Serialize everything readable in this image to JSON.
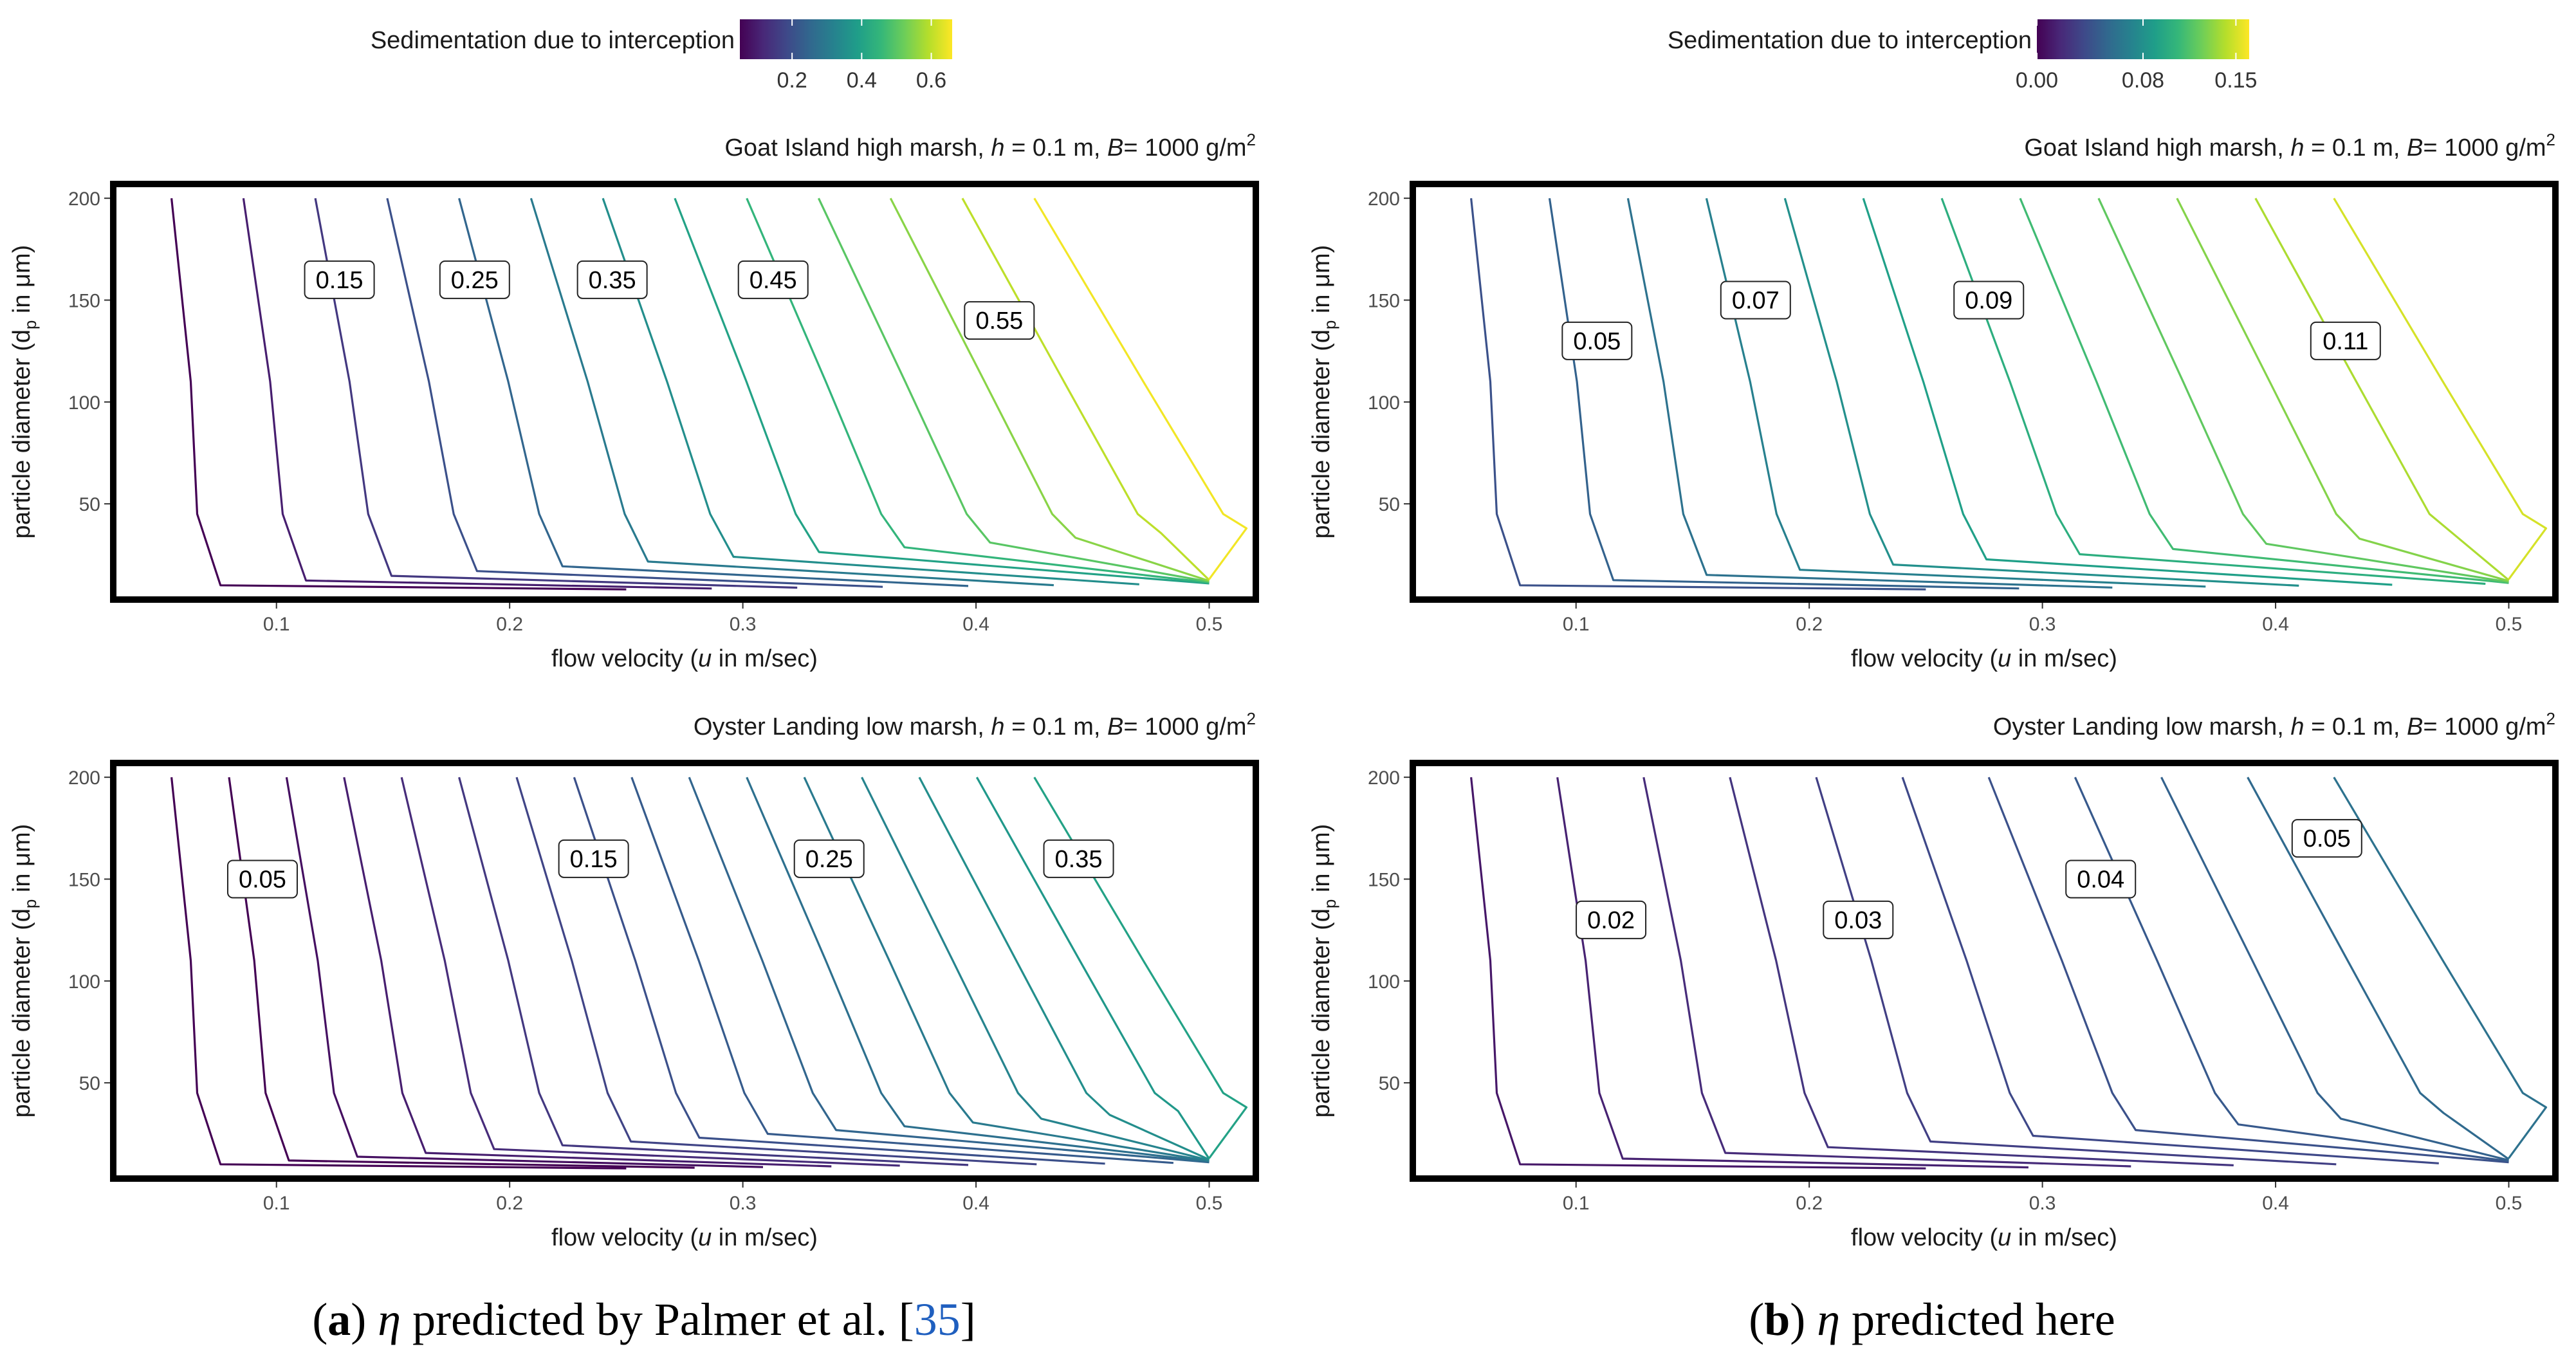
{
  "colorbar_title": "Sedimentation due to interception",
  "colors": {
    "viridis": [
      "#440154",
      "#482878",
      "#3e4989",
      "#31688e",
      "#26828e",
      "#1f9e89",
      "#35b779",
      "#6ece58",
      "#b5de2b",
      "#fde725"
    ],
    "frame": "#000000",
    "text": "#1a1a1a",
    "caption_ref": "#1f5fbf"
  },
  "captions": {
    "a": {
      "letter": "a",
      "text_mid": " predicted by Palmer et al. [",
      "ref": "35",
      "text_end": "]"
    },
    "b": {
      "letter": "b",
      "text_mid": " predicted here",
      "ref": "",
      "text_end": ""
    },
    "eta": "η"
  },
  "chart_data": [
    {
      "id": "a-top",
      "type": "contour",
      "subtitle_parts": {
        "site": "Goat Island high marsh, ",
        "h": "h",
        "h_val": " = 0.1 m, ",
        "B": "B",
        "B_val": "= 1000 g/m",
        "sup": "2"
      },
      "xlabel": "flow velocity (u in m/sec)",
      "ylabel": "particle  diameter (dp in μm)",
      "xlim": [
        0.03,
        0.52
      ],
      "ylim": [
        3,
        207
      ],
      "xticks": [
        0.1,
        0.2,
        0.3,
        0.4,
        0.5
      ],
      "xtick_labels": [
        "0.1",
        "0.2",
        "0.3",
        "0.4",
        "0.5"
      ],
      "yticks": [
        50,
        100,
        150,
        200
      ],
      "ytick_labels": [
        "50",
        "100",
        "150",
        "200"
      ],
      "colorbar": {
        "min": 0.05,
        "max": 0.66,
        "ticks": [
          0.2,
          0.4,
          0.6
        ],
        "tick_labels": [
          "0.2",
          "0.4",
          "0.6"
        ]
      },
      "levels": [
        0.05,
        0.1,
        0.15,
        0.2,
        0.25,
        0.3,
        0.35,
        0.4,
        0.45,
        0.5,
        0.55,
        0.6,
        0.65
      ],
      "contour_labels": [
        {
          "text": "0.15",
          "x": 0.127,
          "y": 160
        },
        {
          "text": "0.25",
          "x": 0.185,
          "y": 160
        },
        {
          "text": "0.35",
          "x": 0.244,
          "y": 160
        },
        {
          "text": "0.45",
          "x": 0.313,
          "y": 160
        },
        {
          "text": "0.55",
          "x": 0.41,
          "y": 140
        }
      ]
    },
    {
      "id": "a-bottom",
      "type": "contour",
      "subtitle_parts": {
        "site": "Oyster Landing low marsh, ",
        "h": "h",
        "h_val": " = 0.1 m, ",
        "B": "B",
        "B_val": "= 1000 g/m",
        "sup": "2"
      },
      "xlabel": "flow velocity (u in m/sec)",
      "ylabel": "particle  diameter (dp in μm)",
      "xlim": [
        0.03,
        0.52
      ],
      "ylim": [
        3,
        207
      ],
      "xticks": [
        0.1,
        0.2,
        0.3,
        0.4,
        0.5
      ],
      "xtick_labels": [
        "0.1",
        "0.2",
        "0.3",
        "0.4",
        "0.5"
      ],
      "yticks": [
        50,
        100,
        150,
        200
      ],
      "ytick_labels": [
        "50",
        "100",
        "150",
        "200"
      ],
      "colorbar": {
        "min": 0.05,
        "max": 0.66,
        "ticks": [
          0.2,
          0.4,
          0.6
        ],
        "tick_labels": [
          "0.2",
          "0.4",
          "0.6"
        ]
      },
      "levels": [
        0.025,
        0.05,
        0.075,
        0.1,
        0.125,
        0.15,
        0.175,
        0.2,
        0.225,
        0.25,
        0.275,
        0.3,
        0.325,
        0.35,
        0.375,
        0.4
      ],
      "contour_labels": [
        {
          "text": "0.05",
          "x": 0.094,
          "y": 150
        },
        {
          "text": "0.15",
          "x": 0.236,
          "y": 160
        },
        {
          "text": "0.25",
          "x": 0.337,
          "y": 160
        },
        {
          "text": "0.35",
          "x": 0.444,
          "y": 160
        }
      ]
    },
    {
      "id": "b-top",
      "type": "contour",
      "subtitle_parts": {
        "site": "Goat Island high marsh, ",
        "h": "h",
        "h_val": " = 0.1 m, ",
        "B": "B",
        "B_val": "= 1000 g/m",
        "sup": "2"
      },
      "xlabel": "flow velocity (u in m/sec)",
      "ylabel": "particle  diameter (dp in μm)",
      "xlim": [
        0.03,
        0.52
      ],
      "ylim": [
        3,
        207
      ],
      "xticks": [
        0.1,
        0.2,
        0.3,
        0.4,
        0.5
      ],
      "xtick_labels": [
        "0.1",
        "0.2",
        "0.3",
        "0.4",
        "0.5"
      ],
      "yticks": [
        50,
        100,
        150,
        200
      ],
      "ytick_labels": [
        "50",
        "100",
        "150",
        "200"
      ],
      "colorbar": {
        "min": 0.0,
        "max": 0.16,
        "ticks": [
          0.0,
          0.08,
          0.15
        ],
        "tick_labels": [
          "0.00",
          "0.08",
          "0.15"
        ]
      },
      "levels": [
        0.04,
        0.05,
        0.06,
        0.07,
        0.08,
        0.09,
        0.1,
        0.11,
        0.12,
        0.13,
        0.14,
        0.15
      ],
      "contour_labels": [
        {
          "text": "0.05",
          "x": 0.109,
          "y": 130
        },
        {
          "text": "0.07",
          "x": 0.177,
          "y": 150
        },
        {
          "text": "0.09",
          "x": 0.277,
          "y": 150
        },
        {
          "text": "0.11",
          "x": 0.43,
          "y": 130
        }
      ]
    },
    {
      "id": "b-bottom",
      "type": "contour",
      "subtitle_parts": {
        "site": "Oyster Landing low marsh, ",
        "h": "h",
        "h_val": " = 0.1 m, ",
        "B": "B",
        "B_val": "= 1000 g/m",
        "sup": "2"
      },
      "xlabel": "flow velocity (u in m/sec)",
      "ylabel": "particle  diameter (dp in μm)",
      "xlim": [
        0.03,
        0.52
      ],
      "ylim": [
        3,
        207
      ],
      "xticks": [
        0.1,
        0.2,
        0.3,
        0.4,
        0.5
      ],
      "xtick_labels": [
        "0.1",
        "0.2",
        "0.3",
        "0.4",
        "0.5"
      ],
      "yticks": [
        50,
        100,
        150,
        200
      ],
      "ytick_labels": [
        "50",
        "100",
        "150",
        "200"
      ],
      "colorbar": {
        "min": 0.0,
        "max": 0.16,
        "ticks": [
          0.0,
          0.08,
          0.15
        ],
        "tick_labels": [
          "0.00",
          "0.08",
          "0.15"
        ]
      },
      "levels": [
        0.01,
        0.015,
        0.02,
        0.025,
        0.03,
        0.035,
        0.04,
        0.045,
        0.05,
        0.055,
        0.06
      ],
      "contour_labels": [
        {
          "text": "0.02",
          "x": 0.115,
          "y": 130
        },
        {
          "text": "0.03",
          "x": 0.221,
          "y": 130
        },
        {
          "text": "0.04",
          "x": 0.325,
          "y": 150
        },
        {
          "text": "0.05",
          "x": 0.422,
          "y": 170
        }
      ]
    }
  ]
}
